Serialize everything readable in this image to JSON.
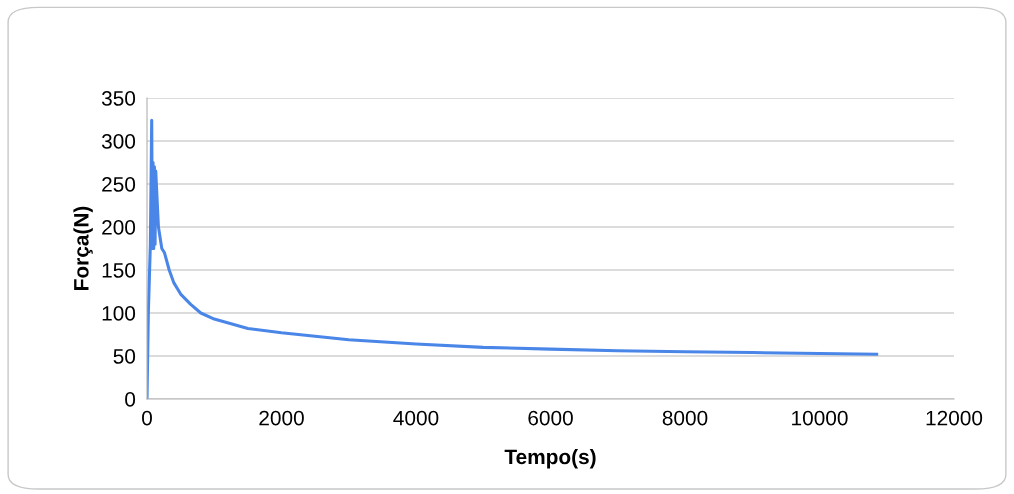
{
  "chart_data": {
    "type": "line",
    "xlabel": "Tempo(s)",
    "ylabel": "Força(N)",
    "series": [
      {
        "color": "#4a86e8",
        "x": [
          0,
          20,
          50,
          70,
          80,
          90,
          100,
          110,
          120,
          130,
          170,
          220,
          260,
          330,
          400,
          500,
          650,
          800,
          1000,
          1500,
          2000,
          2500,
          3000,
          4000,
          5000,
          6000,
          7000,
          8000,
          9000,
          10000,
          10850
        ],
        "values": [
          0,
          100,
          180,
          324,
          175,
          275,
          175,
          270,
          180,
          265,
          200,
          175,
          170,
          150,
          135,
          122,
          110,
          100,
          93,
          82,
          77,
          73,
          69,
          64,
          60,
          58,
          56,
          55,
          54,
          53,
          52
        ]
      }
    ],
    "xlim": [
      0,
      12000
    ],
    "xticks": [
      0,
      2000,
      4000,
      6000,
      8000,
      10000,
      12000
    ],
    "ylim": [
      0,
      350
    ],
    "yticks": [
      0,
      50,
      100,
      150,
      200,
      250,
      300,
      350
    ],
    "grid": "y",
    "marker": "none",
    "line_style": "solid"
  }
}
